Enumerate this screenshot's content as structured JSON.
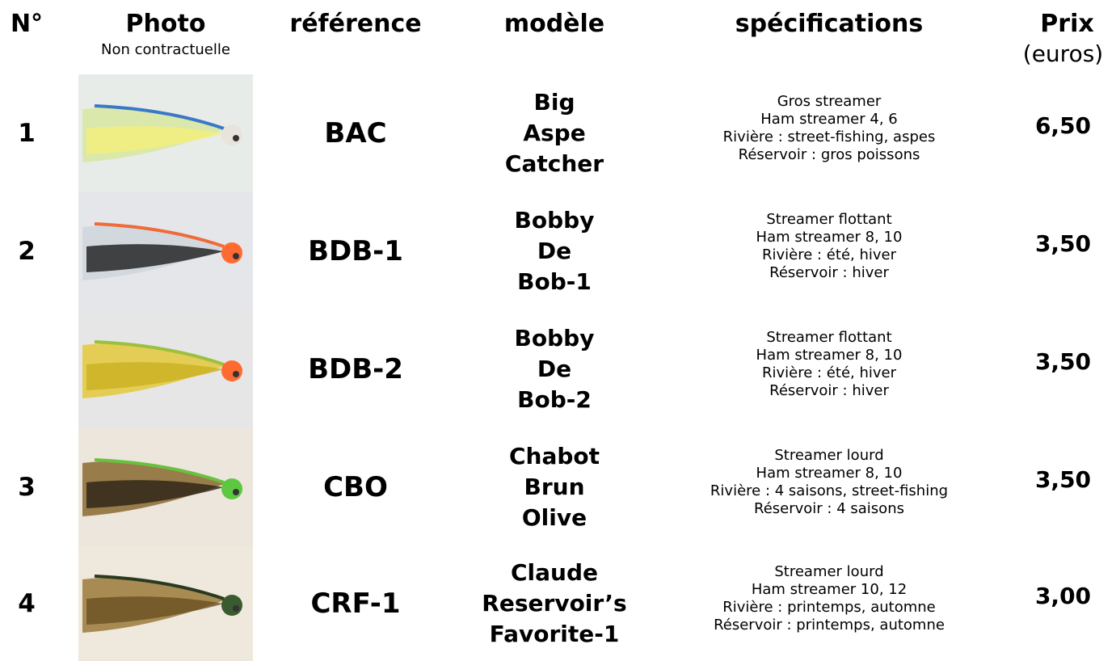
{
  "header": {
    "number": "N°",
    "photo": "Photo",
    "photo_note": "Non contractuelle",
    "reference": "référence",
    "model": "modèle",
    "specifications": "spécifications",
    "price": "Prix",
    "price_unit": "(euros)"
  },
  "rows": [
    {
      "number": "1",
      "reference": "BAC",
      "model": [
        "Big",
        "Aspe",
        "Catcher"
      ],
      "specifications": [
        "Gros streamer",
        "Ham streamer 4, 6",
        "Rivière : street-fishing, aspes",
        "Réservoir : gros poissons"
      ],
      "price": "6,50"
    },
    {
      "number": "2",
      "reference": "BDB-1",
      "model": [
        "Bobby",
        "De",
        "Bob-1"
      ],
      "specifications": [
        "Streamer flottant",
        "Ham streamer 8, 10",
        "Rivière : été, hiver",
        "Réservoir : hiver"
      ],
      "price": "3,50"
    },
    {
      "number": null,
      "reference": "BDB-2",
      "model": [
        "Bobby",
        "De",
        "Bob-2"
      ],
      "specifications": [
        "Streamer flottant",
        "Ham streamer 8, 10",
        "Rivière : été, hiver",
        "Réservoir : hiver"
      ],
      "price": "3,50"
    },
    {
      "number": "3",
      "reference": "CBO",
      "model": [
        "Chabot",
        "Brun",
        "Olive"
      ],
      "specifications": [
        "Streamer lourd",
        "Ham streamer 8, 10",
        "Rivière : 4 saisons, street-fishing",
        "Réservoir : 4 saisons"
      ],
      "price": "3,50"
    },
    {
      "number": "4",
      "reference": "CRF-1",
      "model": [
        "Claude",
        "Reservoir’s",
        "Favorite-1"
      ],
      "specifications": [
        "Streamer lourd",
        "Ham streamer 10, 12",
        "Rivière : printemps, automne",
        "Réservoir : printemps, automne"
      ],
      "price": "3,00"
    }
  ]
}
